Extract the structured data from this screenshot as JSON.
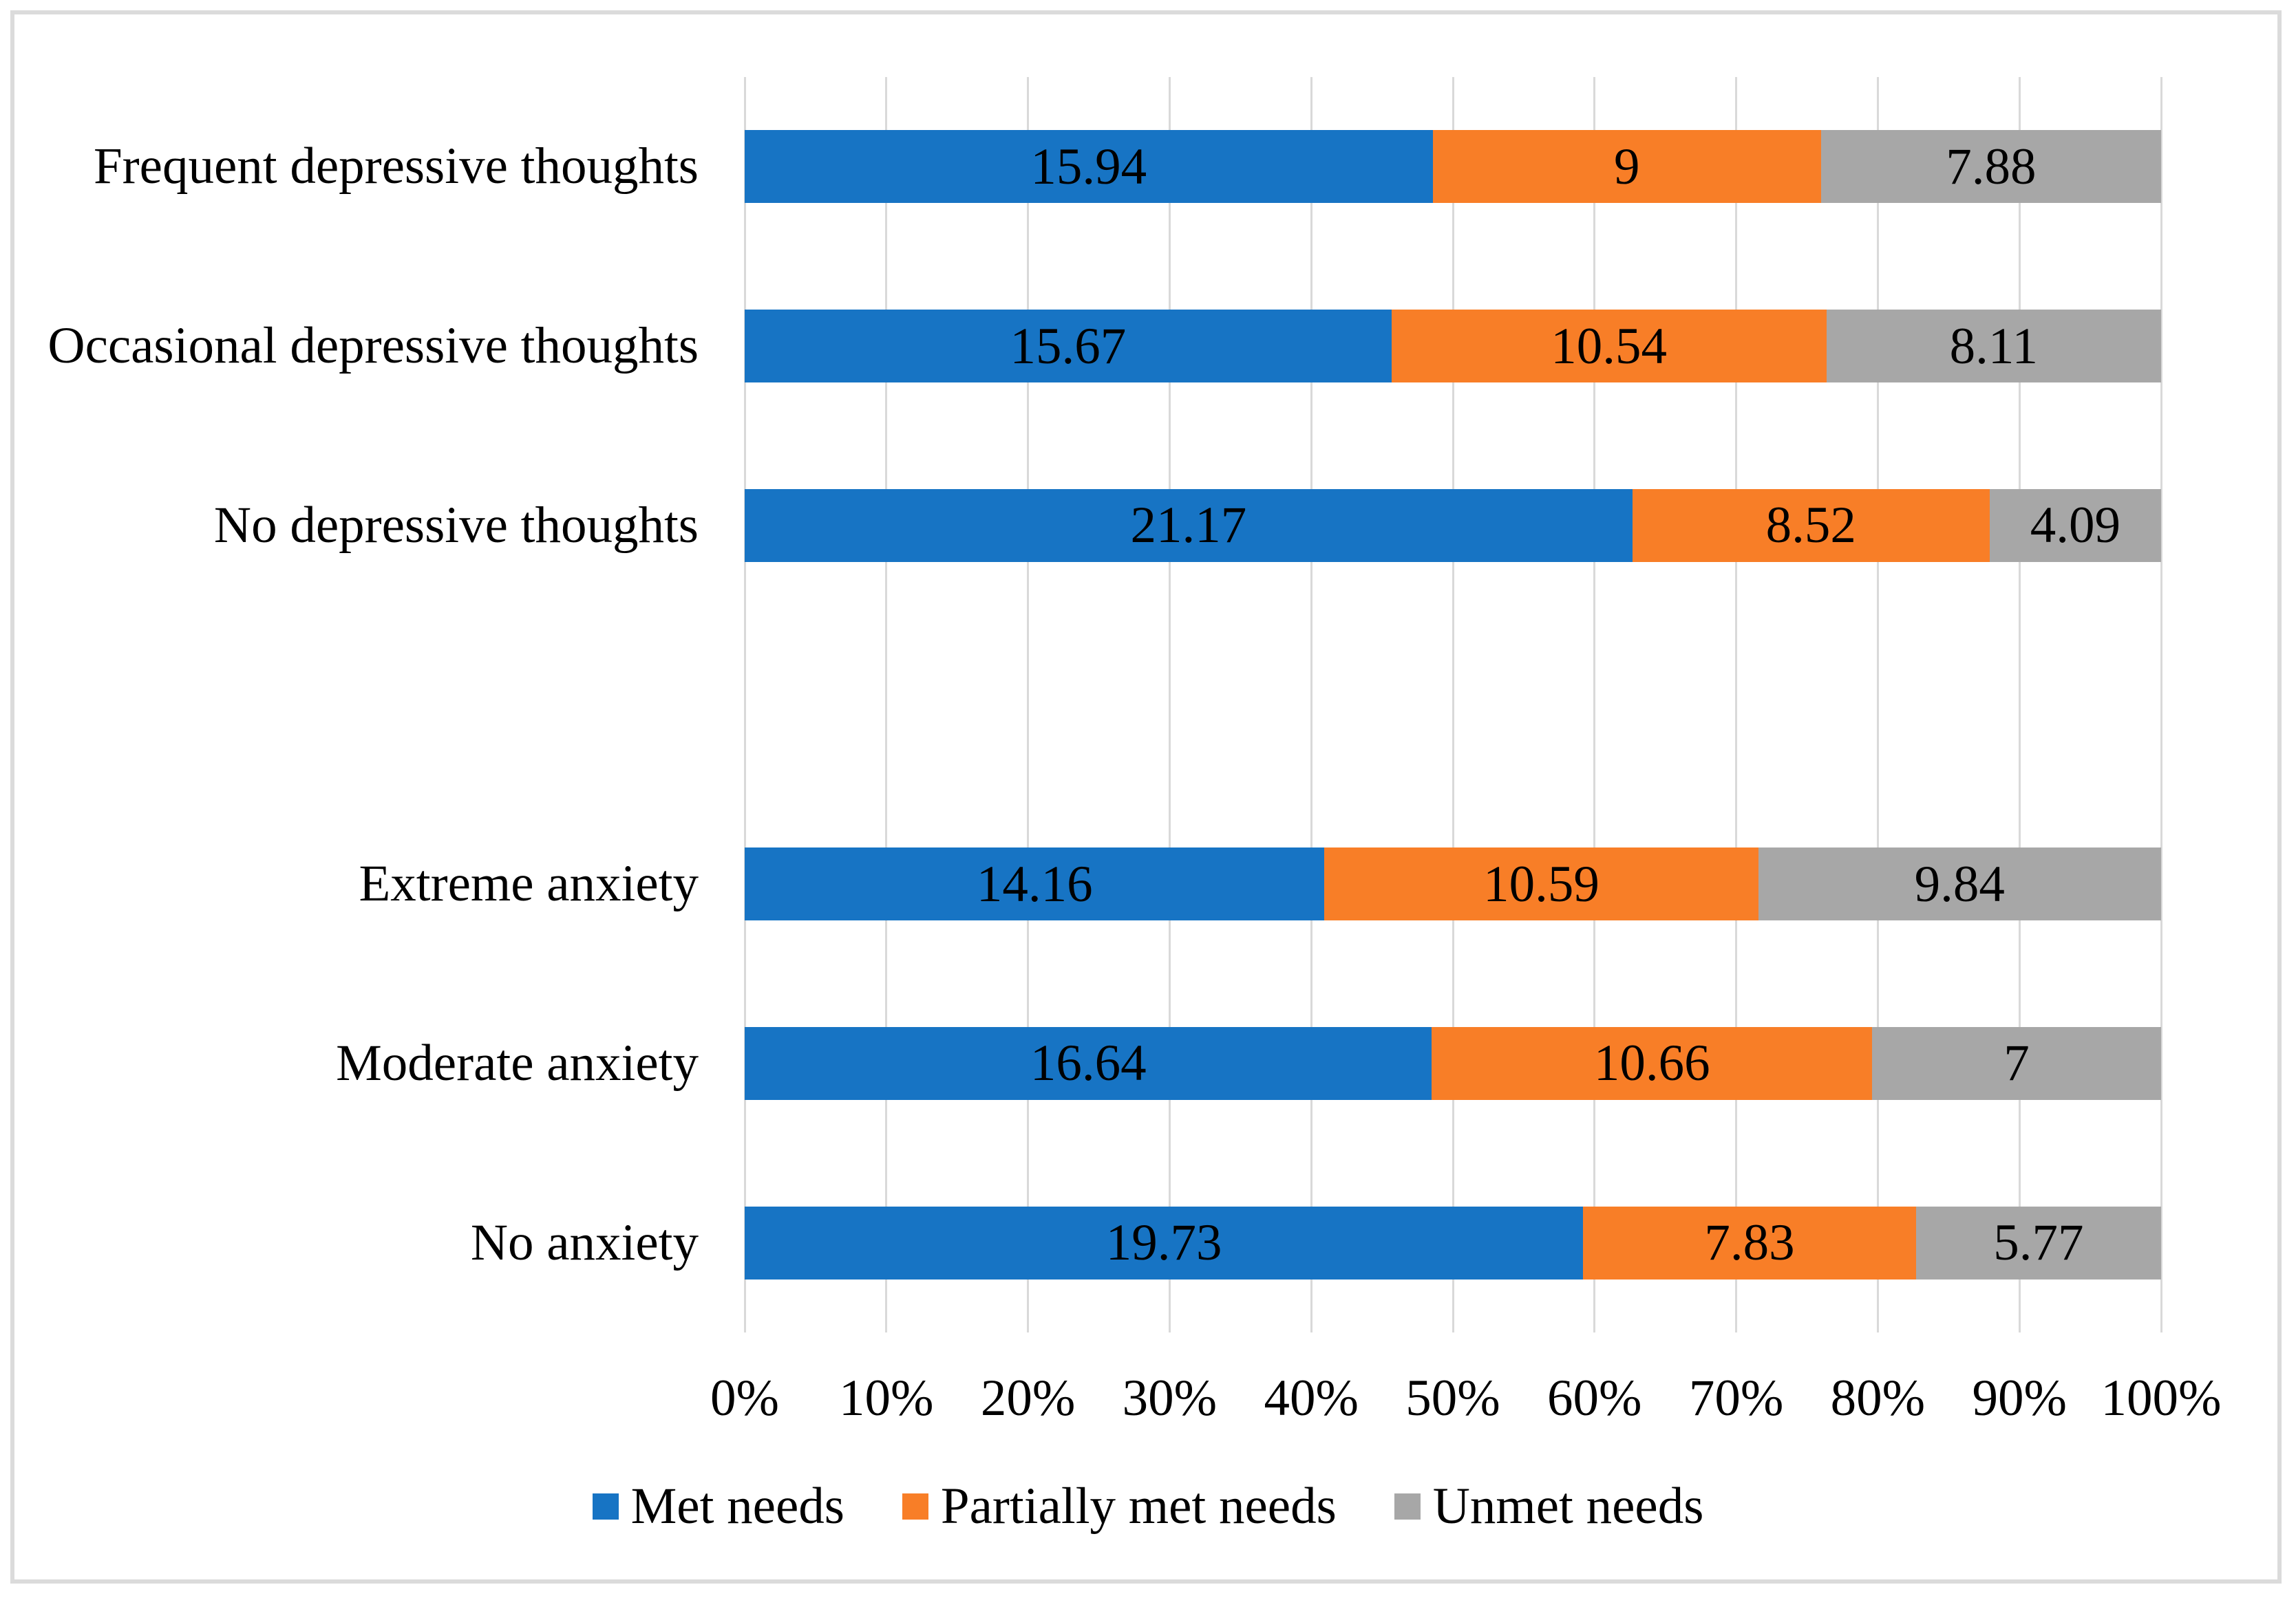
{
  "chart_data": {
    "type": "bar",
    "subtype": "horizontal-100%-stacked",
    "title": "",
    "xlabel": "",
    "ylabel": "",
    "x_axis": {
      "ticks": [
        "0%",
        "10%",
        "20%",
        "30%",
        "40%",
        "50%",
        "60%",
        "70%",
        "80%",
        "90%",
        "100%"
      ],
      "range_percent": [
        0,
        100
      ],
      "grid": true
    },
    "legend": {
      "position": "bottom",
      "entries": [
        "Met needs",
        "Partially met needs",
        "Unmet needs"
      ]
    },
    "series": [
      {
        "name": "Met needs",
        "color": "#1774C4"
      },
      {
        "name": "Partially met needs",
        "color": "#F87E27"
      },
      {
        "name": "Unmet needs",
        "color": "#A7A7A7"
      }
    ],
    "rows": [
      {
        "category": "Frequent depressive thoughts",
        "values": [
          15.94,
          9,
          7.88
        ],
        "labels": [
          "15.94",
          "9",
          "7.88"
        ]
      },
      {
        "category": "Occasional depressive thoughts",
        "values": [
          15.67,
          10.54,
          8.11
        ],
        "labels": [
          "15.67",
          "10.54",
          "8.11"
        ]
      },
      {
        "category": "No depressive thoughts",
        "values": [
          21.17,
          8.52,
          4.09
        ],
        "labels": [
          "21.17",
          "8.52",
          "4.09"
        ]
      },
      {
        "category": "",
        "spacer": true,
        "values": [],
        "labels": []
      },
      {
        "category": "Extreme anxiety",
        "values": [
          14.16,
          10.59,
          9.84
        ],
        "labels": [
          "14.16",
          "10.59",
          "9.84"
        ]
      },
      {
        "category": "Moderate anxiety",
        "values": [
          16.64,
          10.66,
          7
        ],
        "labels": [
          "16.64",
          "10.66",
          "7"
        ]
      },
      {
        "category": "No anxiety",
        "values": [
          19.73,
          7.83,
          5.77
        ],
        "labels": [
          "19.73",
          "7.83",
          "5.77"
        ]
      }
    ],
    "colors": {
      "gridline": "#D9D9D9",
      "frame_border": "#DBDBDB",
      "text": "#000000",
      "background": "#FFFFFF"
    },
    "note_rendering": "each row is normalized to its own total (segments sum to 100% of row width)"
  }
}
